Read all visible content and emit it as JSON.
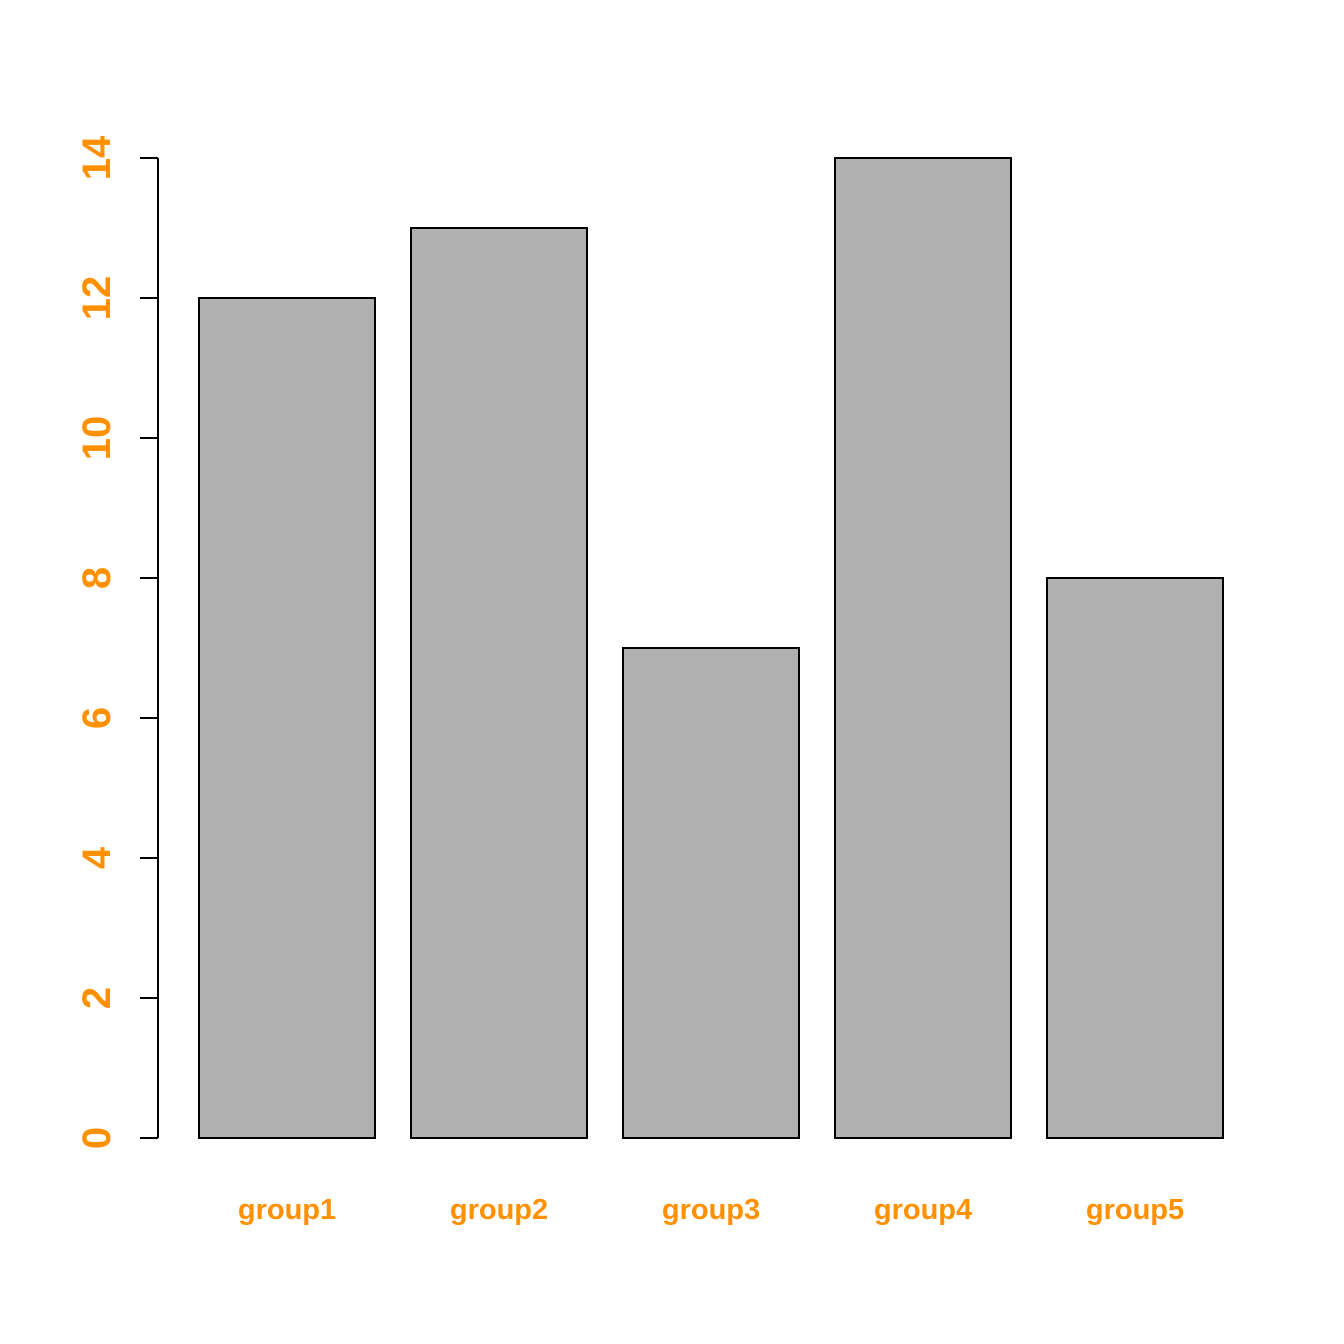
{
  "chart_data": {
    "type": "bar",
    "title": "",
    "xlabel": "",
    "ylabel": "",
    "categories": [
      "group1",
      "group2",
      "group3",
      "group4",
      "group5"
    ],
    "values": [
      12,
      13,
      7,
      14,
      8
    ],
    "ylim": [
      0,
      14
    ],
    "y_ticks": [
      0,
      2,
      4,
      6,
      8,
      10,
      12,
      14
    ],
    "grid": false,
    "legend": "none",
    "colors": {
      "bar_fill": "#b0b0b0",
      "bar_border": "#000000",
      "label_color": "#ff9000",
      "axis_color": "#000000"
    }
  }
}
